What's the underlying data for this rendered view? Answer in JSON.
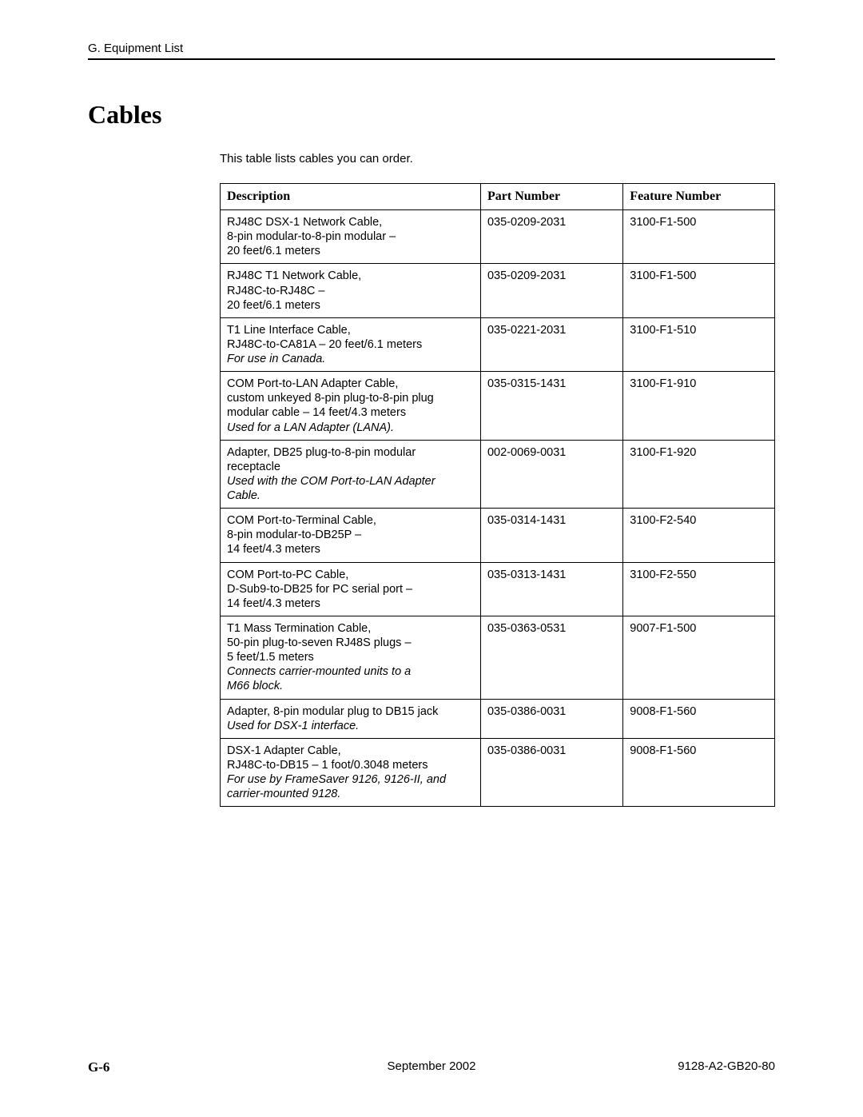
{
  "header": {
    "running_head": "G. Equipment List"
  },
  "title": "Cables",
  "intro": "This table lists cables you can order.",
  "table": {
    "columns": {
      "description": "Description",
      "part_number": "Part Number",
      "feature_number": "Feature Number"
    },
    "rows": [
      {
        "desc_lines": [
          "RJ48C DSX-1 Network Cable,",
          "8-pin modular-to-8-pin modular –",
          "20 feet/6.1 meters"
        ],
        "note_lines": [],
        "part": "035-0209-2031",
        "feat": "3100-F1-500"
      },
      {
        "desc_lines": [
          "RJ48C T1 Network Cable,",
          "RJ48C-to-RJ48C –",
          "20 feet/6.1 meters"
        ],
        "note_lines": [],
        "part": "035-0209-2031",
        "feat": "3100-F1-500"
      },
      {
        "desc_lines": [
          "T1 Line Interface Cable,",
          "RJ48C-to-CA81A – 20 feet/6.1 meters"
        ],
        "note_lines": [
          "For use in Canada."
        ],
        "part": "035-0221-2031",
        "feat": "3100-F1-510"
      },
      {
        "desc_lines": [
          "COM Port-to-LAN Adapter Cable,",
          "custom unkeyed 8-pin plug-to-8-pin plug",
          "modular cable – 14 feet/4.3 meters"
        ],
        "note_lines": [
          "Used for a LAN Adapter (LANA)."
        ],
        "part": "035-0315-1431",
        "feat": "3100-F1-910"
      },
      {
        "desc_lines": [
          "Adapter, DB25 plug-to-8-pin modular",
          "receptacle"
        ],
        "note_lines": [
          "Used with the COM Port-to-LAN Adapter",
          "Cable."
        ],
        "part": "002-0069-0031",
        "feat": "3100-F1-920"
      },
      {
        "desc_lines": [
          "COM Port-to-Terminal Cable,",
          "8-pin modular-to-DB25P –",
          "14 feet/4.3 meters"
        ],
        "note_lines": [],
        "part": "035-0314-1431",
        "feat": "3100-F2-540"
      },
      {
        "desc_lines": [
          "COM Port-to-PC Cable,",
          "D-Sub9-to-DB25 for PC serial port –",
          "14 feet/4.3 meters"
        ],
        "note_lines": [],
        "part": "035-0313-1431",
        "feat": "3100-F2-550"
      },
      {
        "desc_lines": [
          "T1 Mass Termination Cable,",
          "50-pin plug-to-seven RJ48S plugs –",
          "5 feet/1.5 meters"
        ],
        "note_lines": [
          "Connects carrier-mounted units to a",
          "M66 block."
        ],
        "part": "035-0363-0531",
        "feat": "9007-F1-500"
      },
      {
        "desc_lines": [
          "Adapter,  8-pin modular plug to DB15 jack"
        ],
        "note_lines": [
          "Used for DSX-1 interface."
        ],
        "part": "035-0386-0031",
        "feat": "9008-F1-560"
      },
      {
        "desc_lines": [
          "DSX-1 Adapter Cable,",
          "RJ48C-to-DB15 – 1 foot/0.3048 meters"
        ],
        "note_lines": [
          "For use by FrameSaver 9126, 9126-II, and",
          "carrier-mounted 9128."
        ],
        "part": "035-0386-0031",
        "feat": "9008-F1-560"
      }
    ]
  },
  "footer": {
    "page_number": "G-6",
    "date": "September 2002",
    "doc_number": "9128-A2-GB20-80"
  }
}
